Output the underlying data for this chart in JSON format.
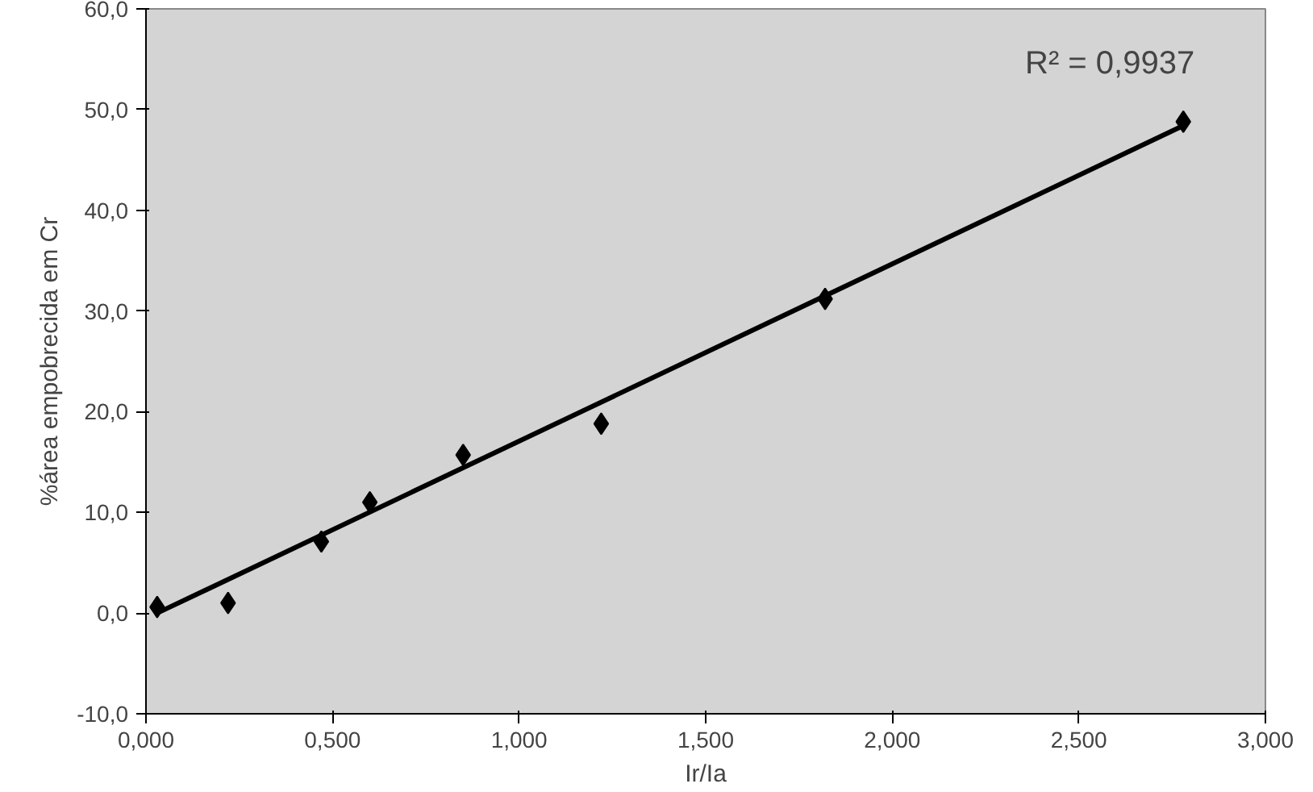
{
  "chart_data": {
    "type": "scatter",
    "xlabel": "Ir/Ia",
    "ylabel": "%área empobrecida em Cr",
    "x": [
      0.03,
      0.22,
      0.47,
      0.6,
      0.85,
      1.22,
      1.82,
      2.78
    ],
    "series": [
      {
        "color": "#000000",
        "marker": "diamond",
        "values": [
          0.6,
          1.0,
          7.1,
          11.0,
          15.7,
          18.8,
          31.2,
          48.8
        ]
      },
      {
        "type": "line",
        "color": "#000000",
        "x": [
          0.03,
          2.78
        ],
        "values": [
          0.0,
          48.4
        ],
        "line_style": "solid"
      }
    ],
    "annotations": [
      "R² = 0,9937"
    ],
    "xlim": [
      0,
      3
    ],
    "xticks": [
      {
        "value": 0,
        "label": "0,000"
      },
      {
        "value": 0.5,
        "label": "0,500"
      },
      {
        "value": 1,
        "label": "1,000"
      },
      {
        "value": 1.5,
        "label": "1,500"
      },
      {
        "value": 2,
        "label": "2,000"
      },
      {
        "value": 2.5,
        "label": "2,500"
      },
      {
        "value": 3,
        "label": "3,000"
      }
    ],
    "ylim": [
      -10,
      60
    ],
    "yticks": [
      {
        "value": -10,
        "label": "-10,0"
      },
      {
        "value": 0,
        "label": "0,0"
      },
      {
        "value": 10,
        "label": "10,0"
      },
      {
        "value": 20,
        "label": "20,0"
      },
      {
        "value": 30,
        "label": "30,0"
      },
      {
        "value": 40,
        "label": "40,0"
      },
      {
        "value": 50,
        "label": "50,0"
      },
      {
        "value": 60,
        "label": "60,0"
      }
    ]
  }
}
